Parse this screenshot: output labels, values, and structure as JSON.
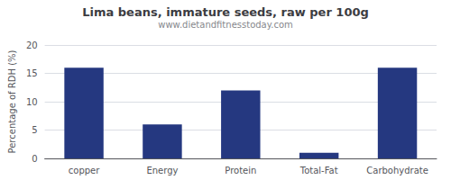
{
  "chart_data": {
    "type": "bar",
    "title": "Lima beans, immature seeds, raw per 100g",
    "subtitle": "www.dietandfitnesstoday.com",
    "categories": [
      "copper",
      "Energy",
      "Protein",
      "Total-Fat",
      "Carbohydrate"
    ],
    "values": [
      16,
      6,
      12,
      1,
      16
    ],
    "color": "#253880",
    "ylabel": "Percentage of RDH (%)",
    "ylim": [
      0,
      20
    ],
    "yticks": [
      0,
      5,
      10,
      15,
      20
    ],
    "grid": true
  }
}
